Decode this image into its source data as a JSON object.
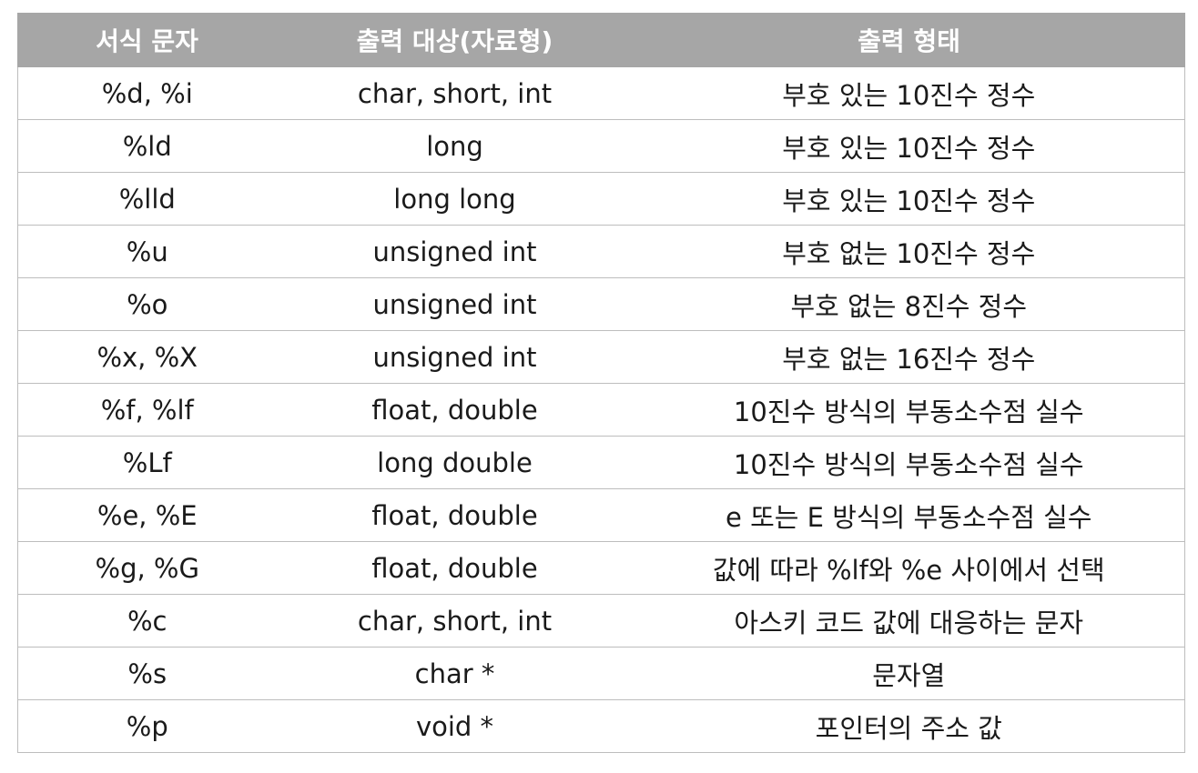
{
  "table": {
    "headers": [
      "서식 문자",
      "출력 대상(자료형)",
      "출력 형태"
    ],
    "rows": [
      [
        "%d, %i",
        "char, short, int",
        "부호 있는 10진수 정수"
      ],
      [
        "%ld",
        "long",
        "부호 있는 10진수 정수"
      ],
      [
        "%lld",
        "long long",
        "부호 있는 10진수 정수"
      ],
      [
        "%u",
        "unsigned int",
        "부호 없는 10진수 정수"
      ],
      [
        "%o",
        "unsigned int",
        "부호 없는 8진수 정수"
      ],
      [
        "%x, %X",
        "unsigned int",
        "부호 없는 16진수 정수"
      ],
      [
        "%f, %lf",
        "float, double",
        "10진수 방식의 부동소수점 실수"
      ],
      [
        "%Lf",
        "long double",
        "10진수 방식의 부동소수점 실수"
      ],
      [
        "%e, %E",
        "float, double",
        "e 또는 E 방식의 부동소수점 실수"
      ],
      [
        "%g, %G",
        "float, double",
        "값에 따라 %lf와 %e 사이에서 선택"
      ],
      [
        "%c",
        "char, short, int",
        "아스키 코드 값에 대응하는 문자"
      ],
      [
        "%s",
        "char *",
        "문자열"
      ],
      [
        "%p",
        "void *",
        "포인터의 주소 값"
      ]
    ]
  },
  "colors": {
    "header_bg": "#a6a6a6",
    "header_text": "#ffffff",
    "border": "#bdbdbd"
  }
}
